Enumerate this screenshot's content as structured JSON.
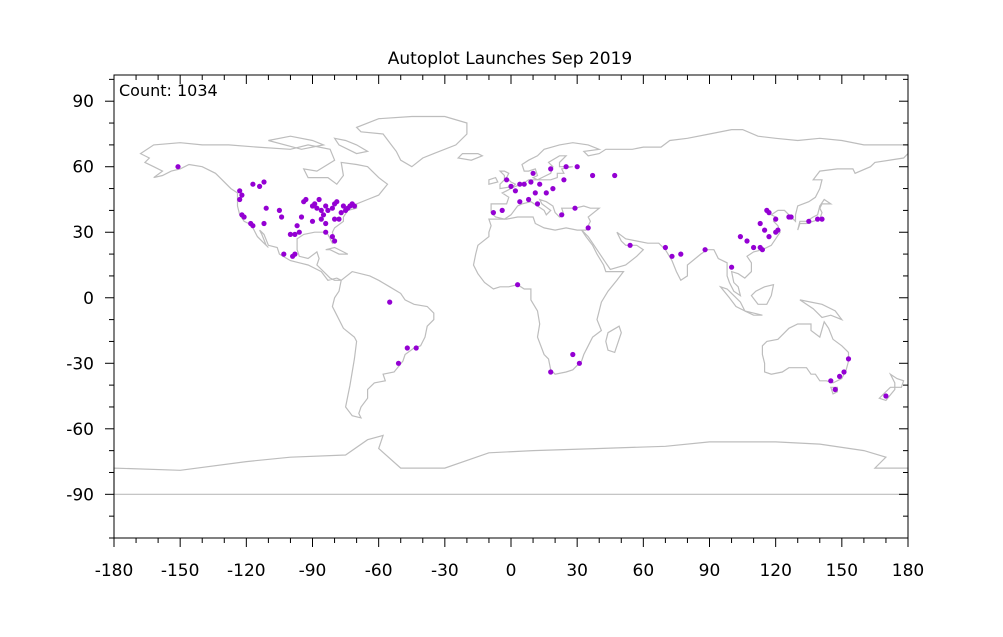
{
  "chart_data": {
    "type": "scatter",
    "title": "Autoplot Launches Sep 2019",
    "annotation": "Count: 1034",
    "xlabel": "",
    "ylabel": "",
    "xlim": [
      -180,
      180
    ],
    "ylim": [
      -110,
      102
    ],
    "x_ticks": [
      -180,
      -150,
      -120,
      -90,
      -60,
      -30,
      0,
      30,
      60,
      90,
      120,
      150,
      180
    ],
    "x_tick_labels": [
      "-180",
      "-150",
      "-120",
      "-90",
      "-60",
      "-30",
      "0",
      "30",
      "60",
      "90",
      "120",
      "150",
      "180"
    ],
    "y_ticks": [
      90,
      60,
      30,
      0,
      -30,
      -60,
      -90
    ],
    "y_tick_labels": [
      "90",
      "60",
      "30",
      "0",
      "-30",
      "-60",
      "-90"
    ],
    "grid": false,
    "point_color": "#9400d3",
    "coastline_color": "#bdbdbd",
    "points": [
      [
        -151,
        60
      ],
      [
        -123,
        49
      ],
      [
        -122,
        47
      ],
      [
        -123,
        45
      ],
      [
        -122,
        38
      ],
      [
        -121,
        37
      ],
      [
        -118,
        34
      ],
      [
        -117,
        33
      ],
      [
        -112,
        34
      ],
      [
        -111,
        41
      ],
      [
        -117,
        52
      ],
      [
        -114,
        51
      ],
      [
        -112,
        53
      ],
      [
        -105,
        40
      ],
      [
        -104,
        37
      ],
      [
        -97,
        33
      ],
      [
        -98,
        29
      ],
      [
        -96,
        30
      ],
      [
        -95,
        37
      ],
      [
        -94,
        44
      ],
      [
        -93,
        45
      ],
      [
        -90,
        42
      ],
      [
        -88,
        41
      ],
      [
        -86,
        40
      ],
      [
        -84,
        42
      ],
      [
        -83,
        40
      ],
      [
        -81,
        41
      ],
      [
        -80,
        43
      ],
      [
        -79,
        44
      ],
      [
        -77,
        39
      ],
      [
        -76,
        42
      ],
      [
        -75,
        40
      ],
      [
        -74,
        41
      ],
      [
        -73,
        42
      ],
      [
        -72,
        43
      ],
      [
        -71,
        42
      ],
      [
        -84,
        34
      ],
      [
        -84,
        30
      ],
      [
        -81,
        28
      ],
      [
        -80,
        26
      ],
      [
        -90,
        35
      ],
      [
        -86,
        36
      ],
      [
        -98,
        20
      ],
      [
        -99,
        19
      ],
      [
        -103,
        20
      ],
      [
        -80,
        36
      ],
      [
        -78,
        36
      ],
      [
        -87,
        45
      ],
      [
        -89,
        43
      ],
      [
        -85,
        38
      ],
      [
        -100,
        29
      ],
      [
        -55,
        -2
      ],
      [
        -47,
        -23
      ],
      [
        -43,
        -23
      ],
      [
        -51,
        -30
      ],
      [
        -2,
        54
      ],
      [
        0,
        51
      ],
      [
        2,
        49
      ],
      [
        4,
        52
      ],
      [
        6,
        52
      ],
      [
        9,
        53
      ],
      [
        11,
        48
      ],
      [
        13,
        52
      ],
      [
        16,
        48
      ],
      [
        19,
        50
      ],
      [
        24,
        54
      ],
      [
        10,
        57
      ],
      [
        18,
        59
      ],
      [
        25,
        60
      ],
      [
        30,
        60
      ],
      [
        37,
        56
      ],
      [
        4,
        44
      ],
      [
        8,
        45
      ],
      [
        12,
        43
      ],
      [
        -4,
        40
      ],
      [
        -8,
        39
      ],
      [
        23,
        38
      ],
      [
        29,
        41
      ],
      [
        35,
        32
      ],
      [
        47,
        56
      ],
      [
        3,
        6
      ],
      [
        28,
        -26
      ],
      [
        31,
        -30
      ],
      [
        18,
        -34
      ],
      [
        54,
        24
      ],
      [
        70,
        23
      ],
      [
        73,
        19
      ],
      [
        77,
        20
      ],
      [
        88,
        22
      ],
      [
        100,
        14
      ],
      [
        104,
        28
      ],
      [
        107,
        26
      ],
      [
        110,
        23
      ],
      [
        113,
        23
      ],
      [
        114,
        22
      ],
      [
        117,
        28
      ],
      [
        120,
        30
      ],
      [
        121,
        31
      ],
      [
        116,
        40
      ],
      [
        117,
        39
      ],
      [
        113,
        34
      ],
      [
        115,
        31
      ],
      [
        120,
        36
      ],
      [
        126,
        37
      ],
      [
        127,
        37
      ],
      [
        135,
        35
      ],
      [
        139,
        36
      ],
      [
        141,
        36
      ],
      [
        153,
        -28
      ],
      [
        151,
        -34
      ],
      [
        149,
        -36
      ],
      [
        145,
        -38
      ],
      [
        147,
        -42
      ],
      [
        170,
        -45
      ]
    ]
  }
}
